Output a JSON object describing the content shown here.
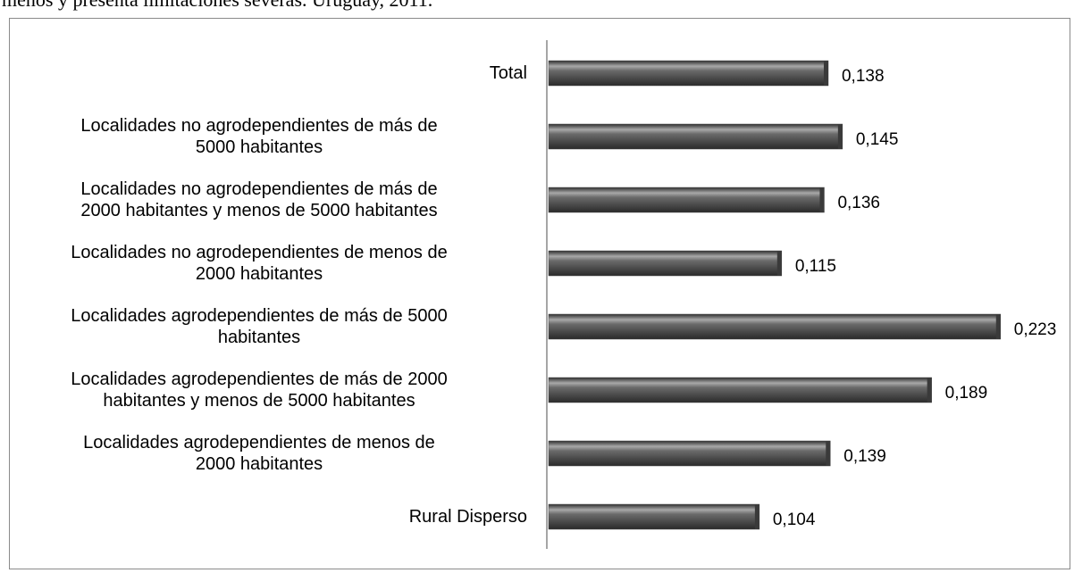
{
  "caption": "menos y presenta limitaciones severas. Uruguay, 2011.",
  "chart_data": {
    "type": "barh",
    "categories": [
      "Total",
      "Localidades no agrodependientes de más de\n5000 habitantes",
      "Localidades no agrodependientes de más de\n2000 habitantes y menos de 5000 habitantes",
      "Localidades no agrodependientes de menos de\n2000 habitantes",
      "Localidades agrodependientes de más de 5000\nhabitantes",
      "Localidades agrodependientes de más de 2000\nhabitantes y menos de 5000 habitantes",
      "Localidades agrodependientes de menos de\n2000 habitantes",
      "Rural Disperso"
    ],
    "values": [
      0.138,
      0.145,
      0.136,
      0.115,
      0.223,
      0.189,
      0.139,
      0.104
    ],
    "value_labels": [
      "0,138",
      "0,145",
      "0,136",
      "0,115",
      "0,223",
      "0,189",
      "0,139",
      "0,104"
    ],
    "color": "#4a4a4a"
  }
}
